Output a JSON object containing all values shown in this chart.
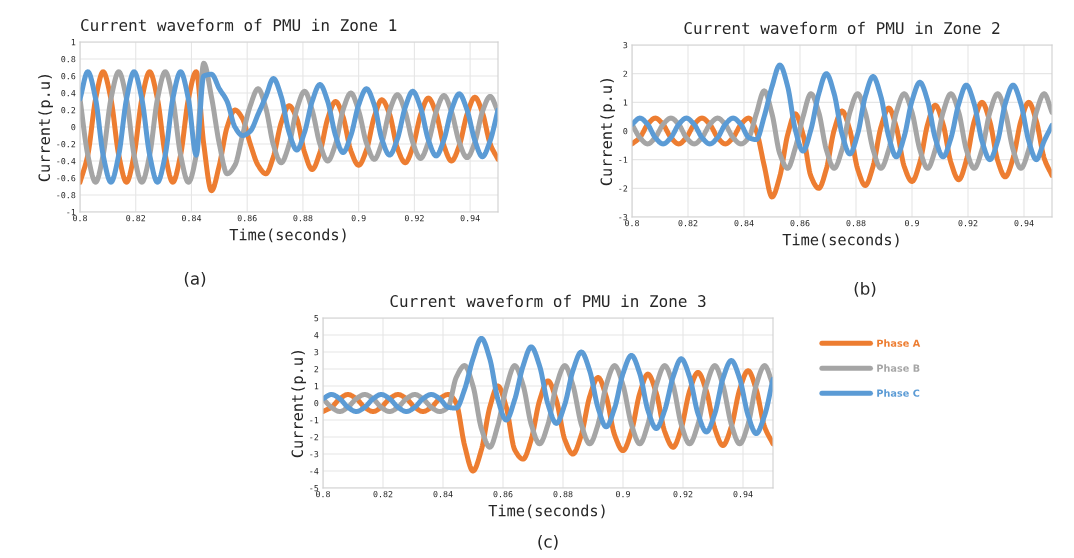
{
  "chart_data": [
    {
      "type": "line",
      "title": "Current waveform of PMU in Zone 1",
      "xlabel": "Time(seconds)",
      "ylabel": "Current(p.u)",
      "annotations": [
        "(a)"
      ],
      "x": [
        0.8,
        0.8028,
        0.8056,
        0.8083,
        0.8111,
        0.8139,
        0.8167,
        0.8194,
        0.8222,
        0.825,
        0.8278,
        0.8306,
        0.8333,
        0.8361,
        0.8389,
        0.8417,
        0.8444,
        0.8472,
        0.85,
        0.8528,
        0.8556,
        0.8583,
        0.8611,
        0.8639,
        0.8667,
        0.8694,
        0.8722,
        0.875,
        0.8778,
        0.8806,
        0.8833,
        0.8861,
        0.8889,
        0.8917,
        0.8944,
        0.8972,
        0.9,
        0.9028,
        0.9056,
        0.9083,
        0.9111,
        0.9139,
        0.9167,
        0.9194,
        0.9222,
        0.925,
        0.9278,
        0.9306,
        0.9333,
        0.9361,
        0.9389,
        0.9417,
        0.9444,
        0.9472,
        0.95
      ],
      "xlim": [
        0.8,
        0.95
      ],
      "xticks": [
        0.8,
        0.82,
        0.84,
        0.86,
        0.88,
        0.9,
        0.92,
        0.94
      ],
      "ylim": [
        -1,
        1
      ],
      "yticks": [
        -1,
        -0.8,
        -0.6,
        -0.4,
        -0.2,
        0,
        0.2,
        0.4,
        0.6,
        0.8,
        1
      ],
      "grid": true,
      "series": [
        {
          "color": "#ed7d31",
          "values": [
            -0.65,
            -0.33,
            0.33,
            0.65,
            0.33,
            -0.33,
            -0.65,
            -0.33,
            0.33,
            0.65,
            0.33,
            -0.33,
            -0.65,
            -0.33,
            0.33,
            0.65,
            -0.2,
            -0.75,
            -0.45,
            0.0,
            0.2,
            0.1,
            -0.2,
            -0.45,
            -0.55,
            -0.35,
            0.05,
            0.25,
            0.1,
            -0.3,
            -0.5,
            -0.3,
            0.1,
            0.3,
            0.12,
            -0.28,
            -0.45,
            -0.27,
            0.12,
            0.32,
            0.15,
            -0.25,
            -0.42,
            -0.24,
            0.14,
            0.34,
            0.16,
            -0.22,
            -0.4,
            -0.22,
            0.15,
            0.35,
            0.17,
            -0.2,
            -0.38
          ]
        },
        {
          "color": "#a5a5a5",
          "values": [
            0.33,
            -0.33,
            -0.65,
            -0.33,
            0.33,
            0.65,
            0.33,
            -0.33,
            -0.65,
            -0.33,
            0.33,
            0.65,
            0.33,
            -0.33,
            -0.65,
            -0.33,
            0.75,
            0.35,
            -0.2,
            -0.55,
            -0.45,
            -0.1,
            0.25,
            0.45,
            0.22,
            -0.21,
            -0.42,
            -0.21,
            0.21,
            0.42,
            0.2,
            -0.2,
            -0.4,
            -0.2,
            0.2,
            0.4,
            0.19,
            -0.19,
            -0.38,
            -0.19,
            0.19,
            0.38,
            0.18,
            -0.18,
            -0.37,
            -0.18,
            0.18,
            0.37,
            0.18,
            -0.18,
            -0.36,
            -0.18,
            0.18,
            0.36,
            0.18
          ]
        },
        {
          "color": "#5b9bd5",
          "values": [
            0.33,
            0.65,
            0.33,
            -0.33,
            -0.65,
            -0.33,
            0.33,
            0.65,
            0.33,
            -0.33,
            -0.65,
            -0.33,
            0.33,
            0.65,
            0.33,
            -0.33,
            0.6,
            0.62,
            0.45,
            0.3,
            0.0,
            -0.1,
            -0.05,
            0.15,
            0.36,
            0.57,
            0.36,
            -0.06,
            -0.27,
            -0.06,
            0.3,
            0.5,
            0.3,
            -0.1,
            -0.3,
            -0.1,
            0.26,
            0.45,
            0.26,
            -0.14,
            -0.33,
            -0.14,
            0.23,
            0.42,
            0.23,
            -0.15,
            -0.34,
            -0.15,
            0.2,
            0.39,
            0.2,
            -0.16,
            -0.35,
            -0.16,
            0.2
          ]
        }
      ]
    },
    {
      "type": "line",
      "title": "Current waveform of PMU in Zone 2",
      "xlabel": "Time(seconds)",
      "ylabel": "Current(p.u)",
      "annotations": [
        "(b)"
      ],
      "x": [
        0.8,
        0.8028,
        0.8056,
        0.8083,
        0.8111,
        0.8139,
        0.8167,
        0.8194,
        0.8222,
        0.825,
        0.8278,
        0.8306,
        0.8333,
        0.8361,
        0.8389,
        0.8417,
        0.8444,
        0.8472,
        0.85,
        0.8528,
        0.8556,
        0.8583,
        0.8611,
        0.8639,
        0.8667,
        0.8694,
        0.8722,
        0.875,
        0.8778,
        0.8806,
        0.8833,
        0.8861,
        0.8889,
        0.8917,
        0.8944,
        0.8972,
        0.9,
        0.9028,
        0.9056,
        0.9083,
        0.9111,
        0.9139,
        0.9167,
        0.9194,
        0.9222,
        0.925,
        0.9278,
        0.9306,
        0.9333,
        0.9361,
        0.9389,
        0.9417,
        0.9444,
        0.9472,
        0.95
      ],
      "xlim": [
        0.8,
        0.95
      ],
      "xticks": [
        0.8,
        0.82,
        0.84,
        0.86,
        0.88,
        0.9,
        0.92,
        0.94
      ],
      "ylim": [
        -3,
        3
      ],
      "yticks": [
        -3,
        -2,
        -1,
        0,
        1,
        2,
        3
      ],
      "grid": true,
      "series": [
        {
          "color": "#ed7d31",
          "values": [
            -0.45,
            -0.23,
            0.23,
            0.45,
            0.23,
            -0.23,
            -0.45,
            -0.23,
            0.23,
            0.45,
            0.23,
            -0.23,
            -0.45,
            -0.23,
            0.23,
            0.45,
            0.0,
            -1.2,
            -2.3,
            -1.58,
            -0.13,
            0.6,
            -0.13,
            -1.58,
            -2.0,
            -1.33,
            0.03,
            0.7,
            0.03,
            -1.33,
            -1.9,
            -1.23,
            0.13,
            0.8,
            0.13,
            -1.23,
            -1.76,
            -1.1,
            0.24,
            0.9,
            0.24,
            -1.1,
            -1.7,
            -1.03,
            0.33,
            1.0,
            0.33,
            -1.03,
            -1.6,
            -0.95,
            0.35,
            1.0,
            0.35,
            -0.95,
            -1.55
          ]
        },
        {
          "color": "#a5a5a5",
          "values": [
            0.23,
            -0.23,
            -0.45,
            -0.23,
            0.23,
            0.45,
            0.23,
            -0.23,
            -0.45,
            -0.23,
            0.23,
            0.45,
            0.23,
            -0.23,
            -0.45,
            -0.23,
            0.6,
            1.4,
            0.6,
            -0.8,
            -1.3,
            -0.6,
            0.5,
            1.3,
            0.65,
            -0.65,
            -1.3,
            -0.65,
            0.65,
            1.3,
            0.65,
            -0.65,
            -1.3,
            -0.65,
            0.65,
            1.3,
            0.65,
            -0.65,
            -1.3,
            -0.65,
            0.65,
            1.3,
            0.65,
            -0.65,
            -1.3,
            -0.65,
            0.65,
            1.3,
            0.65,
            -0.65,
            -1.3,
            -0.65,
            0.65,
            1.3,
            0.65
          ]
        },
        {
          "color": "#5b9bd5",
          "values": [
            0.23,
            0.45,
            0.23,
            -0.23,
            -0.45,
            -0.23,
            0.23,
            0.45,
            0.23,
            -0.23,
            -0.45,
            -0.23,
            0.23,
            0.45,
            0.23,
            -0.23,
            -0.3,
            0.5,
            1.55,
            2.3,
            1.55,
            0.05,
            -0.7,
            0.05,
            1.3,
            2.0,
            1.3,
            -0.1,
            -0.8,
            -0.1,
            1.2,
            1.9,
            1.2,
            -0.2,
            -0.9,
            -0.2,
            1.05,
            1.7,
            1.05,
            -0.25,
            -0.9,
            -0.25,
            0.95,
            1.6,
            0.95,
            -0.35,
            -1.0,
            -0.35,
            0.95,
            1.6,
            0.95,
            -0.35,
            -1.0,
            -0.35,
            0.2
          ]
        }
      ]
    },
    {
      "type": "line",
      "title": "Current waveform of PMU in Zone 3",
      "xlabel": "Time(seconds)",
      "ylabel": "Current(p.u)",
      "annotations": [
        "(c)"
      ],
      "x": [
        0.8,
        0.8028,
        0.8056,
        0.8083,
        0.8111,
        0.8139,
        0.8167,
        0.8194,
        0.8222,
        0.825,
        0.8278,
        0.8306,
        0.8333,
        0.8361,
        0.8389,
        0.8417,
        0.8444,
        0.8472,
        0.85,
        0.8528,
        0.8556,
        0.8583,
        0.8611,
        0.8639,
        0.8667,
        0.8694,
        0.8722,
        0.875,
        0.8778,
        0.8806,
        0.8833,
        0.8861,
        0.8889,
        0.8917,
        0.8944,
        0.8972,
        0.9,
        0.9028,
        0.9056,
        0.9083,
        0.9111,
        0.9139,
        0.9167,
        0.9194,
        0.9222,
        0.925,
        0.9278,
        0.9306,
        0.9333,
        0.9361,
        0.9389,
        0.9417,
        0.9444,
        0.9472,
        0.95
      ],
      "xlim": [
        0.8,
        0.95
      ],
      "xticks": [
        0.8,
        0.82,
        0.84,
        0.86,
        0.88,
        0.9,
        0.92,
        0.94
      ],
      "ylim": [
        -5,
        5
      ],
      "yticks": [
        -5,
        -4,
        -3,
        -2,
        -1,
        0,
        1,
        2,
        3,
        4,
        5
      ],
      "grid": true,
      "legend": "right",
      "series": [
        {
          "name": "Phase A",
          "color": "#ed7d31",
          "values": [
            -0.5,
            -0.25,
            0.25,
            0.5,
            0.25,
            -0.25,
            -0.5,
            -0.25,
            0.25,
            0.5,
            0.25,
            -0.25,
            -0.5,
            -0.25,
            0.25,
            0.5,
            0.0,
            -2.5,
            -4.0,
            -2.75,
            -0.25,
            1.0,
            -0.25,
            -2.75,
            -3.3,
            -2.15,
            0.15,
            1.3,
            0.15,
            -2.15,
            -3.0,
            -1.88,
            0.38,
            1.5,
            0.38,
            -1.88,
            -2.8,
            -1.68,
            0.58,
            1.7,
            0.58,
            -1.68,
            -2.6,
            -1.5,
            0.7,
            1.8,
            0.7,
            -1.5,
            -2.5,
            -1.4,
            0.8,
            1.9,
            0.8,
            -1.4,
            -2.4
          ]
        },
        {
          "name": "Phase B",
          "color": "#a5a5a5",
          "values": [
            0.25,
            -0.25,
            -0.5,
            -0.25,
            0.25,
            0.5,
            0.25,
            -0.25,
            -0.5,
            -0.25,
            0.25,
            0.5,
            0.25,
            -0.25,
            -0.5,
            -0.25,
            1.5,
            2.2,
            1.0,
            -1.5,
            -2.6,
            -1.3,
            0.9,
            2.2,
            1.05,
            -1.25,
            -2.4,
            -1.25,
            1.05,
            2.2,
            1.05,
            -1.25,
            -2.4,
            -1.25,
            1.05,
            2.2,
            1.05,
            -1.25,
            -2.4,
            -1.25,
            1.05,
            2.2,
            1.05,
            -1.25,
            -2.4,
            -1.25,
            1.05,
            2.2,
            1.05,
            -1.25,
            -2.4,
            -1.25,
            1.05,
            2.2,
            1.05
          ]
        },
        {
          "name": "Phase C",
          "color": "#5b9bd5",
          "values": [
            0.25,
            0.5,
            0.25,
            -0.25,
            -0.5,
            -0.25,
            0.25,
            0.5,
            0.25,
            -0.25,
            -0.5,
            -0.25,
            0.25,
            0.5,
            0.25,
            -0.25,
            -0.3,
            0.8,
            2.6,
            3.8,
            2.6,
            0.2,
            -1.0,
            0.2,
            2.18,
            3.3,
            2.18,
            -0.08,
            -1.2,
            -0.08,
            1.9,
            3.0,
            1.9,
            -0.3,
            -1.4,
            -0.3,
            1.73,
            2.8,
            1.73,
            -0.43,
            -1.5,
            -0.43,
            1.53,
            2.6,
            1.53,
            -0.63,
            -1.7,
            -0.63,
            1.43,
            2.5,
            1.43,
            -0.73,
            -1.8,
            -0.73,
            1.4
          ]
        }
      ]
    }
  ]
}
